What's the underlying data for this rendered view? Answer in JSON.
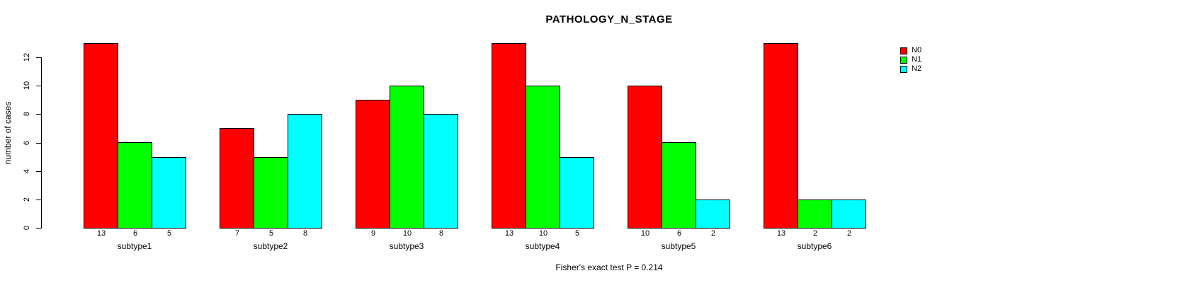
{
  "chart_data": {
    "type": "bar",
    "title": "PATHOLOGY_N_STAGE",
    "ylabel": "number of cases",
    "xlabel": "",
    "caption": "Fisher's exact test P = 0.214",
    "categories": [
      "subtype1",
      "subtype2",
      "subtype3",
      "subtype4",
      "subtype5",
      "subtype6"
    ],
    "series": [
      {
        "name": "N0",
        "color": "#FF0000",
        "values": [
          13,
          7,
          9,
          13,
          10,
          13
        ]
      },
      {
        "name": "N1",
        "color": "#00FF00",
        "values": [
          6,
          5,
          10,
          10,
          6,
          2
        ]
      },
      {
        "name": "N2",
        "color": "#00FFFF",
        "values": [
          5,
          8,
          8,
          5,
          2,
          2
        ]
      }
    ],
    "yticks": [
      0,
      2,
      4,
      6,
      8,
      10,
      12
    ],
    "ylim": [
      0,
      13
    ],
    "grid": false,
    "legend_position": "right",
    "bar_value_labels": true,
    "background_color": "#FFFFFF",
    "axis_color": "#000000"
  }
}
